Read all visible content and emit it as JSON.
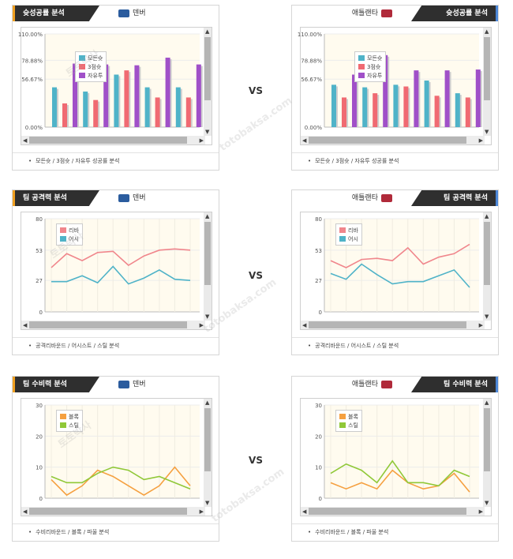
{
  "vs_label": "VS",
  "watermark": [
    "토토박사",
    "totobaksa.com"
  ],
  "panels": [
    {
      "tab": "슛성공률 분석",
      "tab_side": "left",
      "team": "덴버",
      "team_color": "#2b5c9e",
      "footer": "모든슛 / 3점슛 / 자유투 성공률 분석",
      "chart_data": {
        "type": "bar",
        "ylim": [
          0,
          110
        ],
        "yticks": [
          "110.00%",
          "78.88%",
          "56.67%",
          "0.00%"
        ],
        "ytick_values": [
          110,
          78.88,
          56.67,
          0
        ],
        "series": [
          {
            "name": "모든슛",
            "color": "#4fb3c8",
            "values": [
              47,
              42,
              62,
              47,
              47
            ]
          },
          {
            "name": "3점슛",
            "color": "#f06a72",
            "values": [
              28,
              32,
              67,
              35,
              35
            ]
          },
          {
            "name": "자유투",
            "color": "#a050c8",
            "values": [
              75,
              74,
              73,
              82,
              74
            ]
          }
        ]
      }
    },
    {
      "tab": "슛성공률 분석",
      "tab_side": "right",
      "team": "애틀랜타",
      "team_color": "#b02a3a",
      "footer": "모든슛 / 3점슛 / 자유투 성공률 분석",
      "chart_data": {
        "type": "bar",
        "ylim": [
          0,
          110
        ],
        "yticks": [
          "110.00%",
          "78.88%",
          "56.67%",
          "0.00%"
        ],
        "ytick_values": [
          110,
          78.88,
          56.67,
          0
        ],
        "series": [
          {
            "name": "모든슛",
            "color": "#4fb3c8",
            "values": [
              50,
              47,
              50,
              55,
              40
            ]
          },
          {
            "name": "3점슛",
            "color": "#f06a72",
            "values": [
              35,
              40,
              48,
              37,
              35
            ]
          },
          {
            "name": "자유투",
            "color": "#a050c8",
            "values": [
              62,
              85,
              67,
              67,
              68
            ]
          }
        ]
      }
    },
    {
      "tab": "팀 공격력 분석",
      "tab_side": "left",
      "team": "덴버",
      "team_color": "#2b5c9e",
      "footer": "공격리바운드 / 어시스트 / 스틸 분석",
      "chart_data": {
        "type": "line",
        "ylim": [
          0,
          80
        ],
        "yticks": [
          "80",
          "53",
          "27",
          "0"
        ],
        "ytick_values": [
          80,
          53,
          27,
          0
        ],
        "series": [
          {
            "name": "리바",
            "color": "#f0868c",
            "values": [
              38,
              50,
              44,
              51,
              52,
              40,
              48,
              53,
              54,
              53
            ]
          },
          {
            "name": "어시",
            "color": "#4fb3c8",
            "values": [
              26,
              26,
              31,
              25,
              39,
              24,
              29,
              36,
              28,
              27
            ]
          }
        ]
      }
    },
    {
      "tab": "팀 공격력 분석",
      "tab_side": "right",
      "team": "애틀랜타",
      "team_color": "#b02a3a",
      "footer": "공격리바운드 / 어시스트 / 스틸 분석",
      "chart_data": {
        "type": "line",
        "ylim": [
          0,
          80
        ],
        "yticks": [
          "80",
          "53",
          "27",
          "0"
        ],
        "ytick_values": [
          80,
          53,
          27,
          0
        ],
        "series": [
          {
            "name": "리바",
            "color": "#f0868c",
            "values": [
              44,
              38,
              45,
              46,
              44,
              55,
              41,
              47,
              50,
              58
            ]
          },
          {
            "name": "어시",
            "color": "#4fb3c8",
            "values": [
              33,
              28,
              41,
              32,
              24,
              26,
              26,
              31,
              36,
              21
            ]
          }
        ]
      }
    },
    {
      "tab": "팀 수비력 분석",
      "tab_side": "left",
      "team": "덴버",
      "team_color": "#2b5c9e",
      "footer": "수비리바운드 / 블록 / 파울 분석",
      "chart_data": {
        "type": "line",
        "ylim": [
          0,
          30
        ],
        "yticks": [
          "30",
          "20",
          "10",
          "0"
        ],
        "ytick_values": [
          30,
          20,
          10,
          0
        ],
        "series": [
          {
            "name": "블록",
            "color": "#f5a040",
            "values": [
              6,
              1,
              4,
              9,
              7,
              4,
              1,
              4,
              10,
              4
            ]
          },
          {
            "name": "스틸",
            "color": "#90c838",
            "values": [
              7,
              5,
              5,
              8,
              10,
              9,
              6,
              7,
              5,
              3
            ]
          }
        ]
      }
    },
    {
      "tab": "팀 수비력 분석",
      "tab_side": "right",
      "team": "애틀랜타",
      "team_color": "#b02a3a",
      "footer": "수비리바운드 / 블록 / 파울 분석",
      "chart_data": {
        "type": "line",
        "ylim": [
          0,
          30
        ],
        "yticks": [
          "30",
          "20",
          "10",
          "0"
        ],
        "ytick_values": [
          30,
          20,
          10,
          0
        ],
        "series": [
          {
            "name": "블록",
            "color": "#f5a040",
            "values": [
              5,
              3,
              5,
              3,
              9,
              5,
              3,
              4,
              8,
              2
            ]
          },
          {
            "name": "스틸",
            "color": "#90c838",
            "values": [
              8,
              11,
              9,
              5,
              12,
              5,
              5,
              4,
              9,
              7
            ]
          }
        ]
      }
    }
  ]
}
